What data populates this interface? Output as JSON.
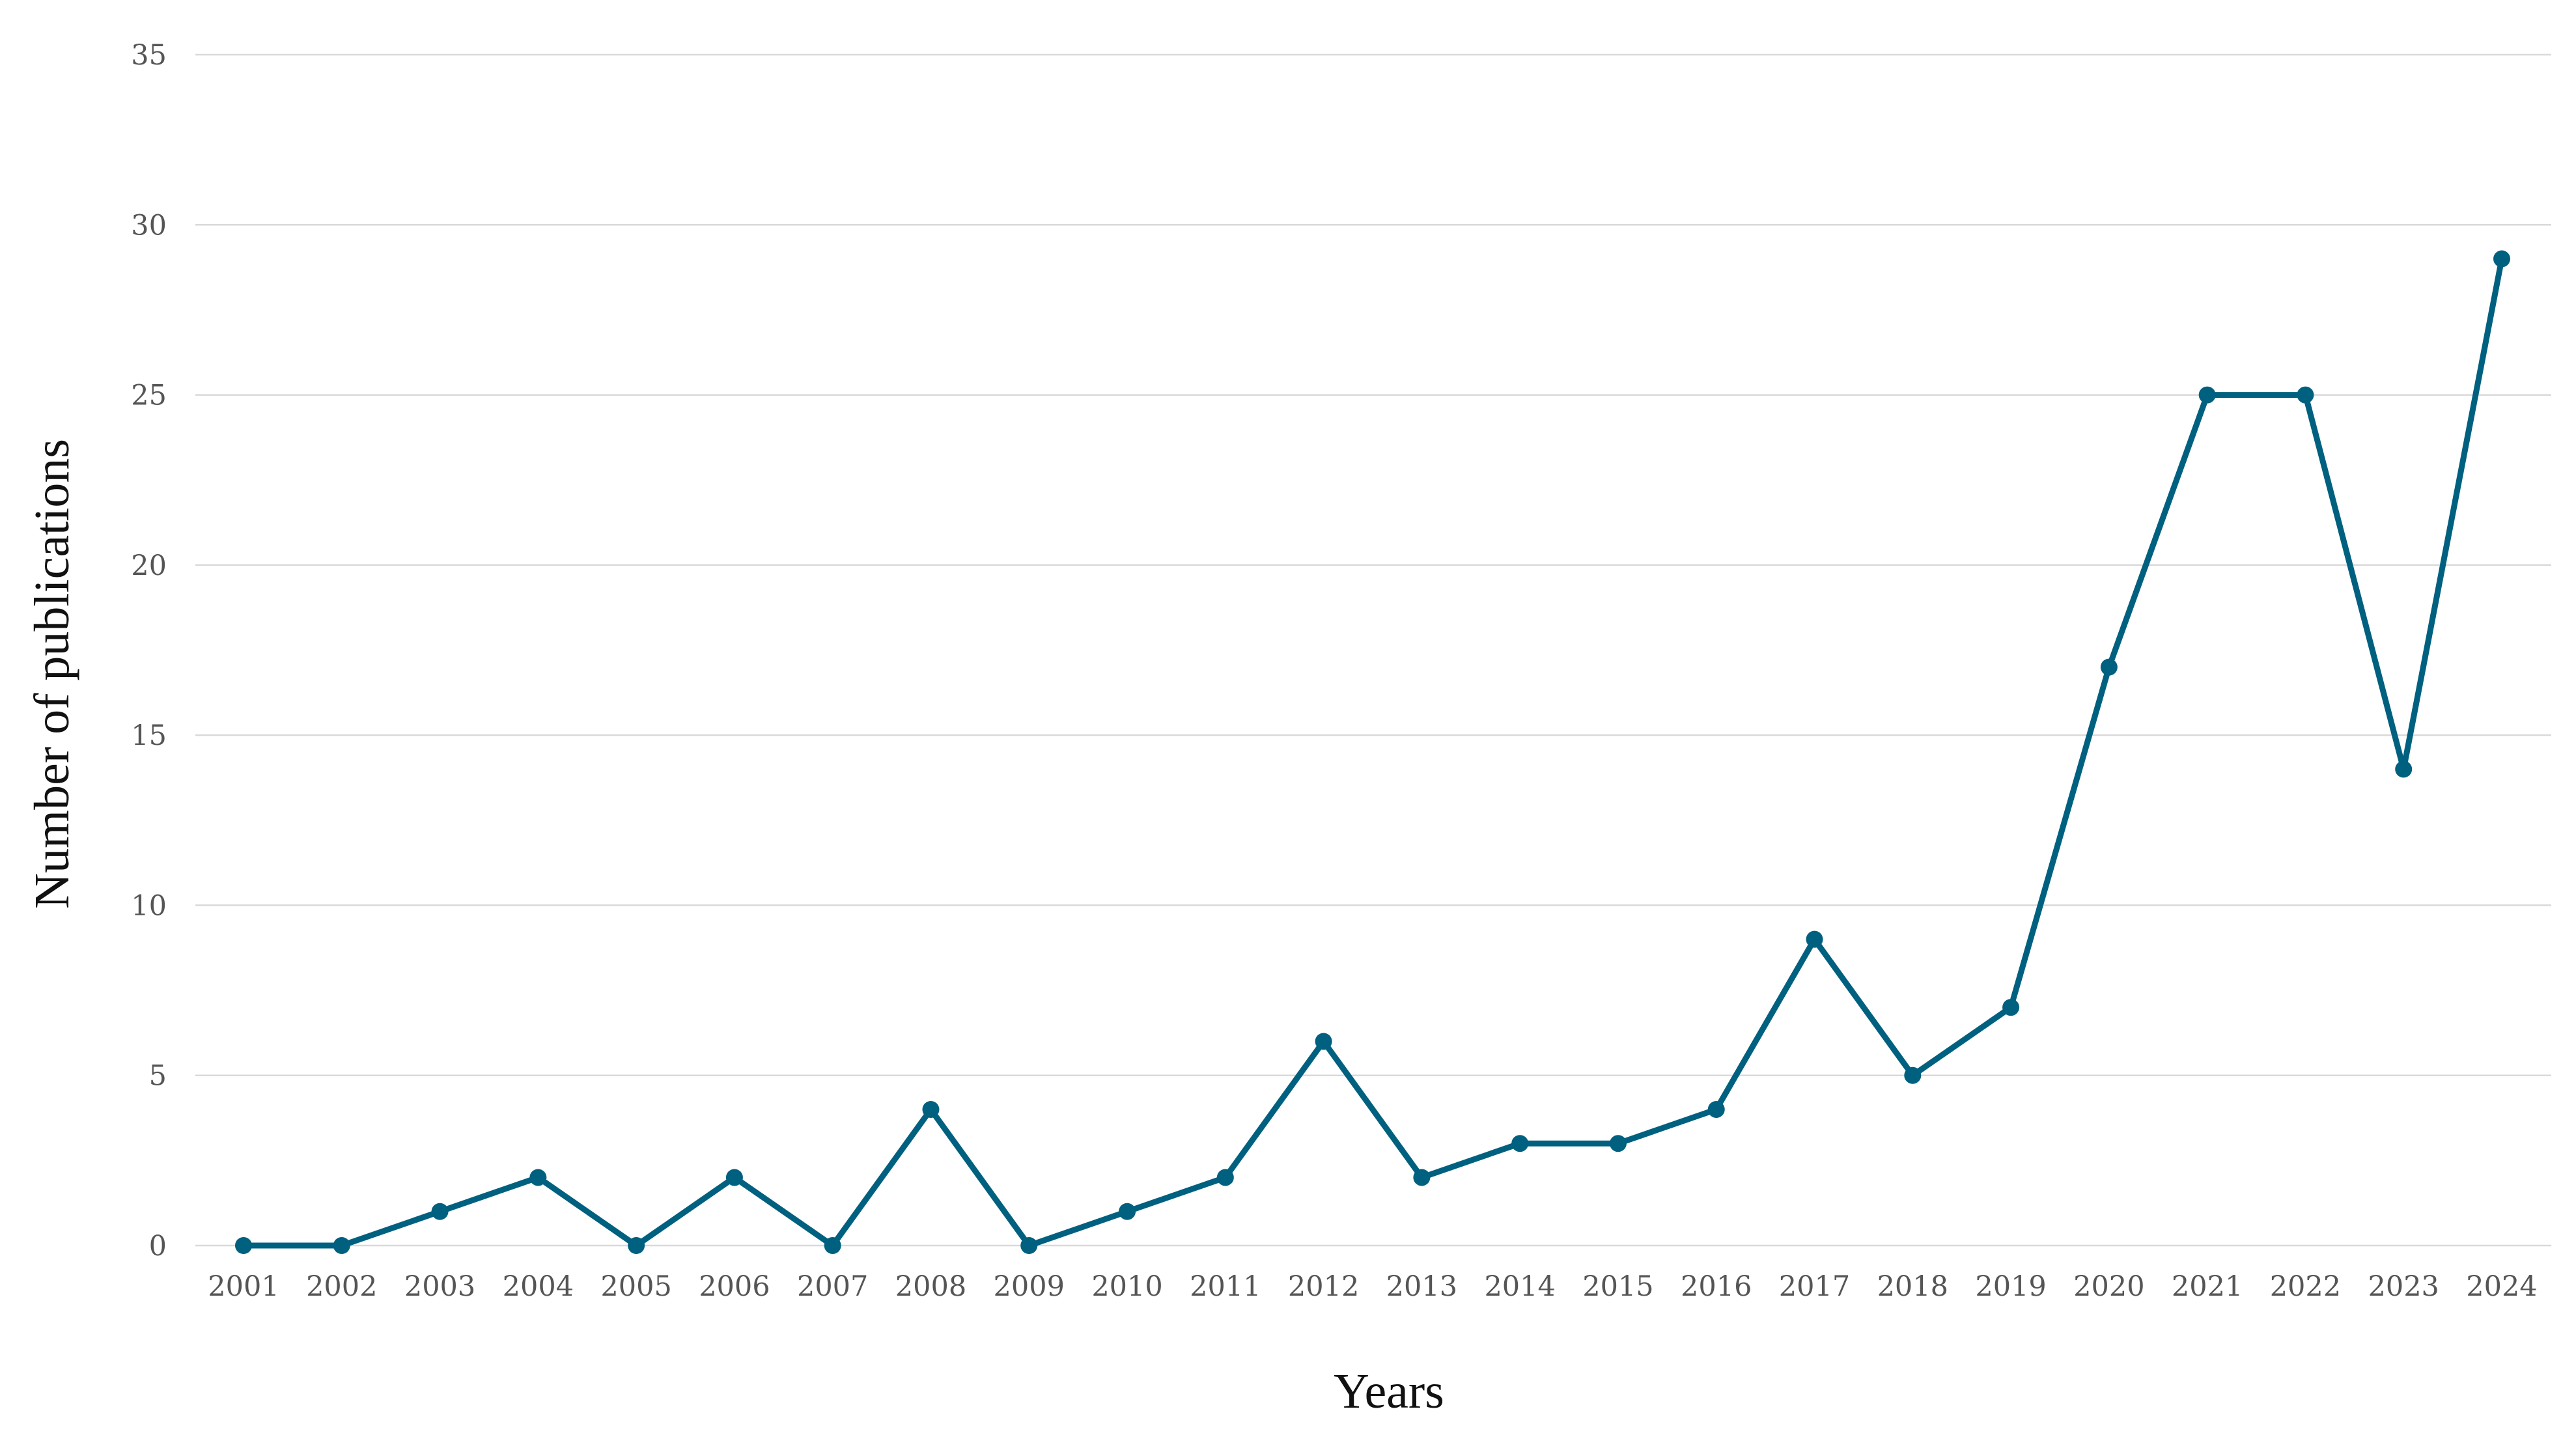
{
  "chart_data": {
    "type": "line",
    "title": "",
    "xlabel": "Years",
    "ylabel": "Number of publications",
    "categories": [
      "2001",
      "2002",
      "2003",
      "2004",
      "2005",
      "2006",
      "2007",
      "2008",
      "2009",
      "2010",
      "2011",
      "2012",
      "2013",
      "2014",
      "2015",
      "2016",
      "2017",
      "2018",
      "2019",
      "2020",
      "2021",
      "2022",
      "2023",
      "2024"
    ],
    "series": [
      {
        "values": [
          0,
          0,
          1,
          2,
          0,
          2,
          0,
          4,
          0,
          1,
          2,
          6,
          2,
          3,
          3,
          4,
          9,
          5,
          7,
          17,
          25,
          25,
          14,
          29
        ]
      }
    ],
    "ylim": [
      0,
      35
    ],
    "yticks": [
      0,
      5,
      10,
      15,
      20,
      25,
      30,
      35
    ],
    "grid": "horizontal",
    "legend": "none",
    "markers": true
  },
  "colors": {
    "series_line": "#00607f",
    "gridline": "#d9d9d9",
    "tick_text": "#555555",
    "axis_title": "#111111"
  }
}
